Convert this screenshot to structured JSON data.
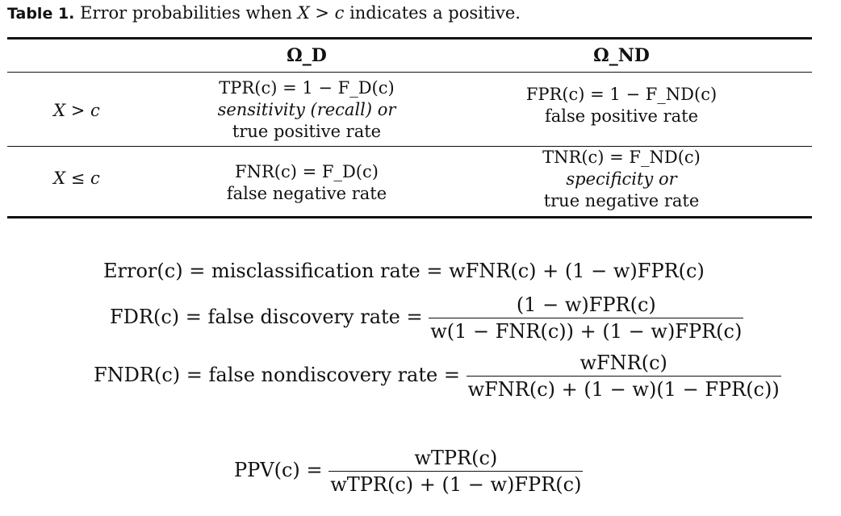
{
  "caption": {
    "label": "Table 1.",
    "text_before": "Error probabilities when",
    "condition": "X > c",
    "text_after": "indicates a positive."
  },
  "table": {
    "col_headers": [
      "Ω_D",
      "Ω_ND"
    ],
    "rows": [
      {
        "label": "X > c",
        "cells": [
          {
            "formula": "TPR(c) = 1 − F_D(c)",
            "lines": [
              "sensitivity (recall) or",
              "true positive rate"
            ]
          },
          {
            "formula": "FPR(c) = 1 − F_ND(c)",
            "lines": [
              "false positive rate"
            ]
          }
        ]
      },
      {
        "label": "X ≤ c",
        "cells": [
          {
            "formula": "FNR(c) = F_D(c)",
            "lines": [
              "false negative rate"
            ]
          },
          {
            "formula": "TNR(c) = F_ND(c)",
            "lines": [
              "specificity or",
              "true negative rate"
            ]
          }
        ]
      }
    ]
  },
  "equations": [
    {
      "lhs": "Error(c)",
      "name": "misclassification rate",
      "rhs": "wFNR(c) + (1 − w)FPR(c)"
    },
    {
      "lhs": "FDR(c)",
      "name": "false discovery rate",
      "numerator": "(1 − w)FPR(c)",
      "denominator": "w(1 − FNR(c)) + (1 − w)FPR(c)"
    },
    {
      "lhs": "FNDR(c)",
      "name": "false nondiscovery rate",
      "numerator": "wFNR(c)",
      "denominator": "wFNR(c) + (1 − w)(1 − FPR(c))"
    },
    {
      "lhs": "PPV(c)",
      "numerator": "wTPR(c)",
      "denominator": "wTPR(c) + (1 − w)FPR(c)"
    }
  ]
}
